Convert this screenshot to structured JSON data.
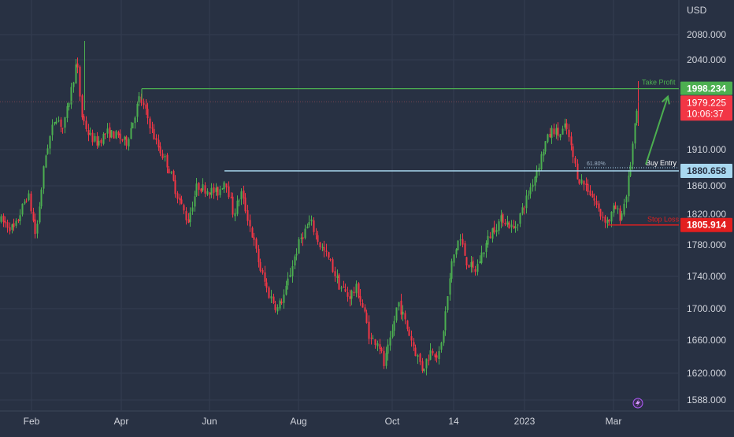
{
  "chart_data": {
    "type": "candlestick",
    "currency": "USD",
    "y_ticks": [
      2080,
      2040,
      1910,
      1860,
      1820,
      1780,
      1740,
      1700,
      1660,
      1620,
      1588
    ],
    "y_tick_labels": [
      "2080.000",
      "2040.000",
      "1910.000",
      "1860.000",
      "1820.000",
      "1780.000",
      "1740.000",
      "1700.000",
      "1660.000",
      "1620.000",
      "1588.000"
    ],
    "ylim": [
      1575,
      2100
    ],
    "x_labels": [
      "Feb",
      "Apr",
      "Jun",
      "Aug",
      "Oct",
      "14",
      "2023",
      "Mar"
    ],
    "price_path": [
      [
        0,
        1812
      ],
      [
        18,
        1800
      ],
      [
        35,
        1850
      ],
      [
        45,
        1790
      ],
      [
        57,
        1900
      ],
      [
        70,
        1960
      ],
      [
        80,
        1940
      ],
      [
        89,
        1990
      ],
      [
        97,
        2040
      ],
      [
        103,
        1960
      ],
      [
        113,
        1930
      ],
      [
        123,
        1920
      ],
      [
        135,
        1935
      ],
      [
        148,
        1930
      ],
      [
        160,
        1920
      ],
      [
        168,
        1950
      ],
      [
        177,
        1985
      ],
      [
        186,
        1960
      ],
      [
        198,
        1920
      ],
      [
        212,
        1890
      ],
      [
        224,
        1850
      ],
      [
        238,
        1810
      ],
      [
        250,
        1860
      ],
      [
        262,
        1855
      ],
      [
        276,
        1850
      ],
      [
        286,
        1870
      ],
      [
        296,
        1820
      ],
      [
        306,
        1850
      ],
      [
        318,
        1800
      ],
      [
        330,
        1750
      ],
      [
        340,
        1720
      ],
      [
        352,
        1700
      ],
      [
        362,
        1720
      ],
      [
        372,
        1760
      ],
      [
        382,
        1790
      ],
      [
        394,
        1810
      ],
      [
        406,
        1780
      ],
      [
        418,
        1760
      ],
      [
        430,
        1730
      ],
      [
        442,
        1715
      ],
      [
        453,
        1725
      ],
      [
        462,
        1695
      ],
      [
        470,
        1660
      ],
      [
        480,
        1660
      ],
      [
        487,
        1630
      ],
      [
        496,
        1660
      ],
      [
        505,
        1710
      ],
      [
        515,
        1680
      ],
      [
        526,
        1650
      ],
      [
        536,
        1625
      ],
      [
        548,
        1650
      ],
      [
        558,
        1640
      ],
      [
        566,
        1700
      ],
      [
        574,
        1760
      ],
      [
        583,
        1790
      ],
      [
        592,
        1760
      ],
      [
        602,
        1745
      ],
      [
        612,
        1770
      ],
      [
        625,
        1800
      ],
      [
        638,
        1815
      ],
      [
        652,
        1800
      ],
      [
        664,
        1830
      ],
      [
        674,
        1860
      ],
      [
        684,
        1890
      ],
      [
        692,
        1920
      ],
      [
        702,
        1940
      ],
      [
        710,
        1930
      ],
      [
        718,
        1945
      ],
      [
        726,
        1905
      ],
      [
        734,
        1870
      ],
      [
        744,
        1860
      ],
      [
        754,
        1840
      ],
      [
        762,
        1820
      ],
      [
        772,
        1810
      ],
      [
        780,
        1830
      ],
      [
        788,
        1815
      ],
      [
        796,
        1855
      ],
      [
        800,
        1890
      ],
      [
        806,
        1945
      ],
      [
        810,
        1979
      ]
    ],
    "levels": {
      "take_profit": {
        "label": "Take Profit",
        "value": 1998.234,
        "display": "1998.234"
      },
      "current_price": {
        "display": "1979.225",
        "countdown": "10:06:37",
        "value": 1979.225
      },
      "buy_entry": {
        "label": "Buy Entry",
        "value": 1880.658,
        "display": "1880.658",
        "fib_label": "61.80%"
      },
      "stop_loss": {
        "label": "Stop Loss",
        "value": 1805.914,
        "display": "1805.914"
      }
    },
    "colors": {
      "background": "#283143",
      "grid": "#333d50",
      "up": "#4caf50",
      "down": "#f23645",
      "take_profit": "#4caf50",
      "buy_entry": "#a8d8f0",
      "stop_loss": "#e31f1f",
      "axis_text": "#d1d4dc"
    }
  }
}
